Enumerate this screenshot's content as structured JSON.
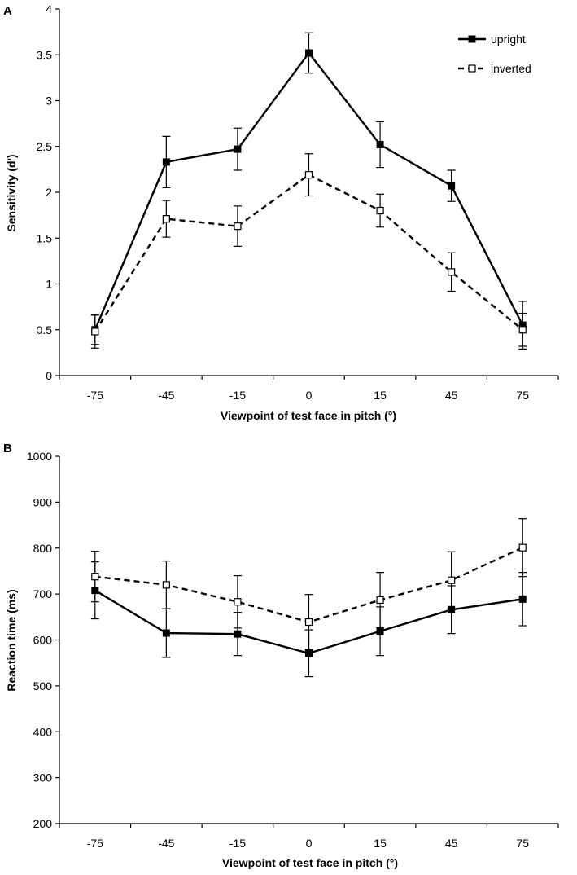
{
  "chart_data": [
    {
      "panel": "A",
      "type": "line",
      "categories": [
        "-75",
        "-45",
        "-15",
        "0",
        "15",
        "45",
        "75"
      ],
      "x": [
        -75,
        -45,
        -15,
        0,
        15,
        45,
        75
      ],
      "ylabel": "Sensitivity (d')",
      "xlabel": "Viewpoint of test face in pitch (°)",
      "ylim": [
        0,
        4
      ],
      "yticks": [
        0,
        0.5,
        1,
        1.5,
        2,
        2.5,
        3,
        3.5,
        4
      ],
      "ytick_labels": [
        "0",
        "0.5",
        "1",
        "1.5",
        "2",
        "2.5",
        "3",
        "3.5",
        "4"
      ],
      "legend_position": "top-right",
      "series": [
        {
          "name": "upright",
          "style": "solid",
          "marker": "filled-square",
          "values": [
            0.5,
            2.33,
            2.47,
            3.52,
            2.52,
            2.07,
            0.55
          ],
          "errors": [
            0.16,
            0.28,
            0.23,
            0.22,
            0.25,
            0.17,
            0.26
          ]
        },
        {
          "name": "inverted",
          "style": "dashed",
          "marker": "open-square",
          "values": [
            0.48,
            1.71,
            1.63,
            2.19,
            1.8,
            1.13,
            0.5
          ],
          "errors": [
            0.18,
            0.2,
            0.22,
            0.23,
            0.18,
            0.21,
            0.18
          ]
        }
      ]
    },
    {
      "panel": "B",
      "type": "line",
      "categories": [
        "-75",
        "-45",
        "-15",
        "0",
        "15",
        "45",
        "75"
      ],
      "x": [
        -75,
        -45,
        -15,
        0,
        15,
        45,
        75
      ],
      "ylabel": "Reaction time (ms)",
      "xlabel": "Viewpoint of test face in pitch (°)",
      "ylim": [
        200,
        1000
      ],
      "yticks": [
        200,
        300,
        400,
        500,
        600,
        700,
        800,
        900,
        1000
      ],
      "ytick_labels": [
        "200",
        "300",
        "400",
        "500",
        "600",
        "700",
        "800",
        "900",
        "1000"
      ],
      "series": [
        {
          "name": "upright",
          "style": "solid",
          "marker": "filled-square",
          "values": [
            708,
            615,
            613,
            571,
            619,
            666,
            689
          ],
          "errors": [
            62,
            53,
            47,
            51,
            53,
            52,
            58
          ]
        },
        {
          "name": "inverted",
          "style": "dashed",
          "marker": "open-square",
          "values": [
            738,
            720,
            683,
            639,
            687,
            730,
            801
          ],
          "errors": [
            55,
            52,
            57,
            60,
            60,
            62,
            63
          ]
        }
      ]
    }
  ]
}
